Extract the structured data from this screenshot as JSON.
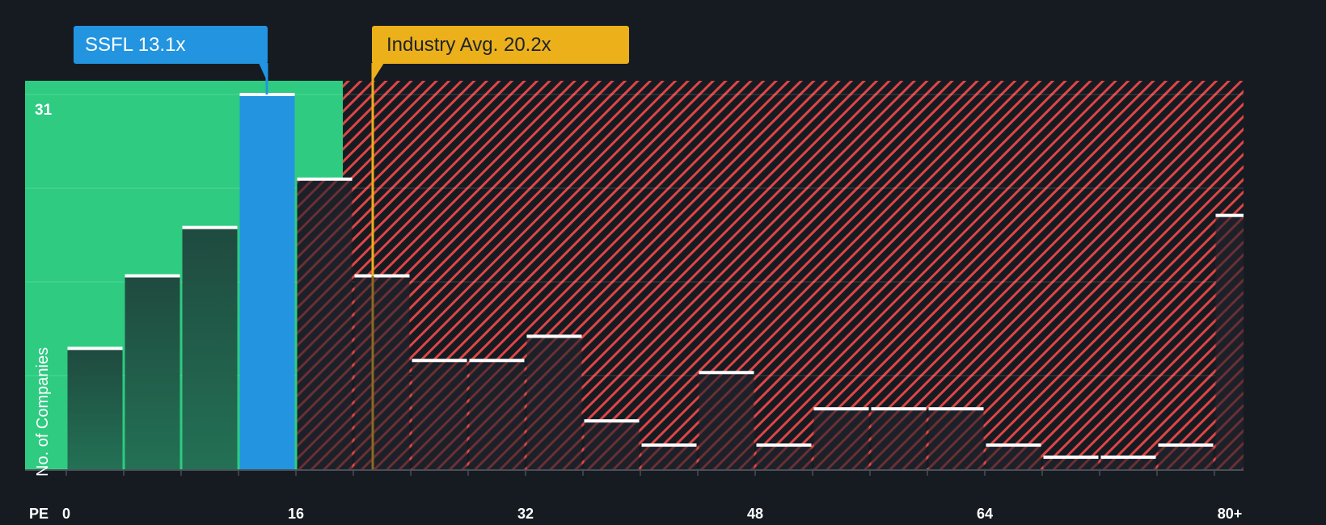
{
  "callouts": {
    "company": "SSFL 13.1x",
    "industry": "Industry Avg. 20.2x"
  },
  "axis": {
    "x_prefix": "PE",
    "y_label": "No. of Companies",
    "y_max_label": "31"
  },
  "colors": {
    "background": "#161b22",
    "fair_zone": "#2ecb81",
    "company_bar": "#2394e0",
    "industry_line": "#ebb01a",
    "overvalued_hatch": "#e04545",
    "bar_dark_green": "#1f4a3f",
    "bar_dark": "#1c2029"
  },
  "chart_data": {
    "type": "bar",
    "title": "",
    "xlabel": "PE",
    "ylabel": "No. of Companies",
    "x_tick_labels": [
      "0",
      "16",
      "32",
      "48",
      "64",
      "80+"
    ],
    "x_tick_values": [
      0,
      16,
      32,
      48,
      64,
      80
    ],
    "ylim": [
      0,
      31
    ],
    "y_tick_labels": [
      "31"
    ],
    "grid": true,
    "bin_width": 4,
    "categories": [
      "0-4",
      "4-8",
      "8-12",
      "12-16",
      "16-20",
      "20-24",
      "24-28",
      "28-32",
      "32-36",
      "36-40",
      "40-44",
      "44-48",
      "48-52",
      "52-56",
      "56-60",
      "60-64",
      "64-68",
      "68-72",
      "72-76",
      "76-80",
      "80+"
    ],
    "bin_starts": [
      0,
      4,
      8,
      12,
      16,
      20,
      24,
      28,
      32,
      36,
      40,
      44,
      48,
      52,
      56,
      60,
      64,
      68,
      72,
      76,
      80
    ],
    "values": [
      10,
      16,
      20,
      31,
      24,
      16,
      9,
      9,
      11,
      4,
      2,
      8,
      2,
      5,
      5,
      5,
      2,
      1,
      1,
      2,
      21
    ],
    "highlight_bin": "12-16",
    "annotations": [
      {
        "label": "SSFL 13.1x",
        "x": 13.1,
        "color": "#2394e0"
      },
      {
        "label": "Industry Avg. 20.2x",
        "x": 20.2,
        "color": "#ebb01a"
      }
    ],
    "zones": [
      {
        "name": "below-average",
        "from": 0,
        "to": 19.6,
        "color": "#2ecb81"
      },
      {
        "name": "above-average",
        "from": 19.6,
        "to": 82,
        "color": "#e04545",
        "style": "hatched"
      }
    ]
  }
}
